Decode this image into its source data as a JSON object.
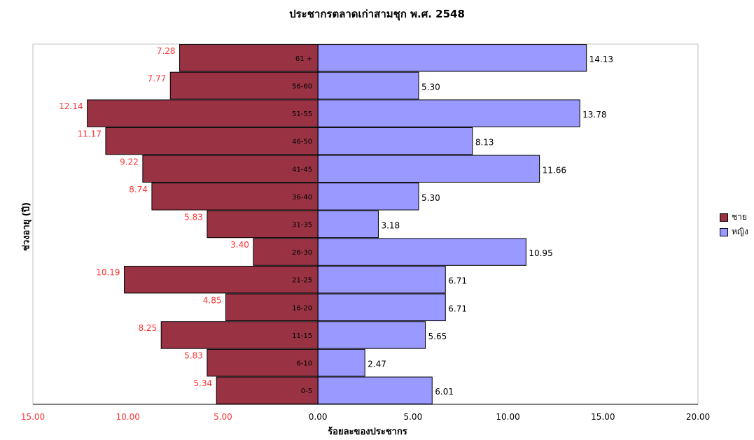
{
  "chart_data": {
    "type": "bar",
    "orientation": "horizontal",
    "title": "ประชากรตลาดเก่าสามชุก พ.ศ. 2548",
    "xlabel": "ร้อยละของประชากร",
    "ylabel": "ช่วงอายุ (ปี)",
    "xlim": [
      -15,
      20
    ],
    "x_ticks": [
      "15.00",
      "10.00",
      "5.00",
      "0.00",
      "5.00",
      "10.00",
      "15.00",
      "20.00"
    ],
    "categories": [
      "0-5",
      "6-10",
      "11-15",
      "16-20",
      "21-25",
      "26-30",
      "31-35",
      "36-40",
      "41-45",
      "46-50",
      "51-55",
      "56-60",
      "61 +"
    ],
    "series": [
      {
        "name": "ชาย",
        "color": "#993344",
        "label_color": "#ff3333",
        "values": [
          5.34,
          5.83,
          8.25,
          4.85,
          10.19,
          3.4,
          5.83,
          8.74,
          9.22,
          11.17,
          12.14,
          7.77,
          7.28
        ],
        "labels": [
          "5.34",
          "5.83",
          "8.25",
          "4.85",
          "10.19",
          "3.40",
          "5.83",
          "8.74",
          "9.22",
          "11.17",
          "12.14",
          "7.77",
          "7.28"
        ]
      },
      {
        "name": "หญิง",
        "color": "#9999ff",
        "label_color": "#000000",
        "values": [
          6.01,
          2.47,
          5.65,
          6.71,
          6.71,
          10.95,
          3.18,
          5.3,
          11.66,
          8.13,
          13.78,
          5.3,
          14.13
        ],
        "labels": [
          "6.01",
          "2.47",
          "5.65",
          "6.71",
          "6.71",
          "10.95",
          "3.18",
          "5.30",
          "11.66",
          "8.13",
          "13.78",
          "5.30",
          "14.13"
        ]
      }
    ],
    "legend_position": "right",
    "grid": false
  }
}
